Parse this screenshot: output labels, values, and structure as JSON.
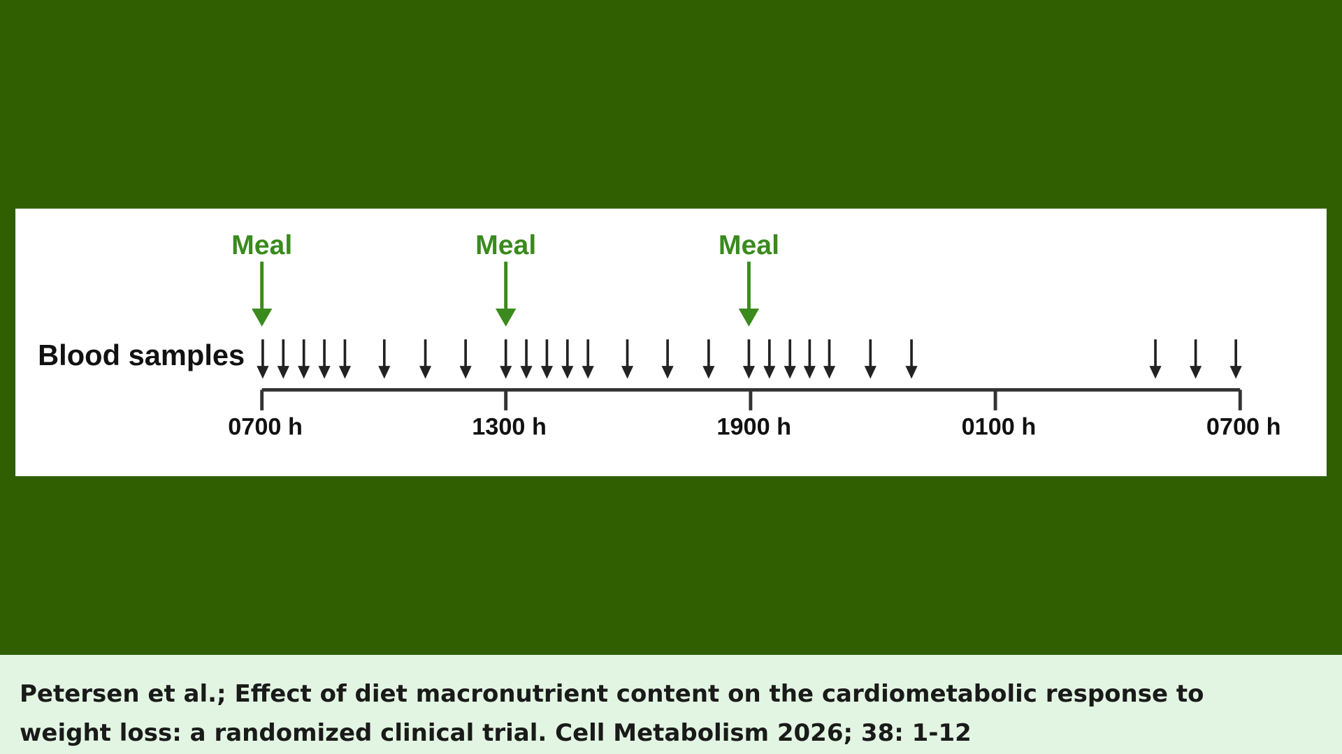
{
  "diagram": {
    "meals": [
      "Meal",
      "Meal",
      "Meal"
    ],
    "samples_label": "Blood samples",
    "time_labels": [
      "0700 h",
      "1300 h",
      "1900 h",
      "0100 h",
      "0700 h"
    ]
  },
  "citation": "Petersen et al.; Effect of diet macronutrient content on the cardiometabolic response to weight loss: a randomized clinical trial. Cell Metabolism 2026; 38: 1-12"
}
